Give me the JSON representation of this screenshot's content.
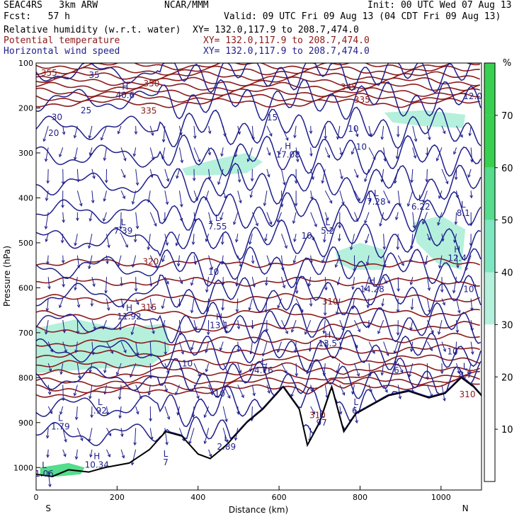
{
  "header": {
    "model": "SEAC4RS   3km ARW",
    "org": "NCAR/MMM",
    "init": "Init: 00 UTC Wed 07 Aug 13",
    "fcst": "Fcst:   57 h",
    "valid": "Valid: 09 UTC Fri 09 Aug 13 (04 CDT Fri 09 Aug 13)",
    "fields": [
      {
        "label": "Relative humidity (w.r.t. water)",
        "xy": "XY= 132.0,117.9 to 208.7,474.0",
        "color": "#000000"
      },
      {
        "label": "Potential temperature",
        "xy": "XY= 132.0,117.9 to 208.7,474.0",
        "color": "#8b1a1a"
      },
      {
        "label": "Horizontal wind speed",
        "xy": "XY= 132.0,117.9 to 208.7,474.0",
        "color": "#1f1f8a"
      }
    ]
  },
  "chart_data": {
    "type": "cross-section",
    "xlabel": "Distance (km)",
    "ylabel": "Pressure (hPa)",
    "xlim": [
      0,
      1100
    ],
    "ylim": [
      1050,
      100
    ],
    "xticks": [
      0,
      200,
      400,
      600,
      800,
      1000
    ],
    "yticks": [
      100,
      200,
      300,
      400,
      500,
      600,
      700,
      800,
      900,
      1000
    ],
    "x_end_labels": {
      "left": "S",
      "right": "N"
    },
    "colorbar": {
      "unit": "%",
      "ticks": [
        10,
        20,
        30,
        40,
        50,
        60,
        70
      ],
      "colors": [
        "#ffffff",
        "#ffffff",
        "#ffffff",
        "#b4f0dc",
        "#7ee6c0",
        "#55dc8c",
        "#38d050"
      ]
    },
    "theta_labels": [
      {
        "text": "355",
        "x": 12,
        "p": 128
      },
      {
        "text": "350",
        "x": 265,
        "p": 152
      },
      {
        "text": "345",
        "x": 752,
        "p": 160
      },
      {
        "text": "335",
        "x": 258,
        "p": 213
      },
      {
        "text": "335",
        "x": 785,
        "p": 188
      },
      {
        "text": "320",
        "x": 263,
        "p": 548
      },
      {
        "text": "315",
        "x": 258,
        "p": 650
      },
      {
        "text": "310",
        "x": 706,
        "p": 637
      },
      {
        "text": "310",
        "x": 675,
        "p": 890
      },
      {
        "text": "310",
        "x": 1045,
        "p": 844
      }
    ],
    "speed_labels": [
      {
        "text": "35",
        "x": 130,
        "p": 133
      },
      {
        "text": "30",
        "x": 38,
        "p": 227
      },
      {
        "text": "25",
        "x": 110,
        "p": 212
      },
      {
        "text": "20",
        "x": 30,
        "p": 262
      },
      {
        "text": "15",
        "x": 570,
        "p": 228
      },
      {
        "text": "10",
        "x": 790,
        "p": 293
      },
      {
        "text": "10",
        "x": 770,
        "p": 253
      },
      {
        "text": "10",
        "x": 655,
        "p": 491
      },
      {
        "text": "10",
        "x": 425,
        "p": 571
      },
      {
        "text": "10",
        "x": 1055,
        "p": 610
      },
      {
        "text": "10",
        "x": 1015,
        "p": 748
      },
      {
        "text": "10",
        "x": 360,
        "p": 775
      },
      {
        "text": "10",
        "x": 440,
        "p": 842
      },
      {
        "text": "12.0",
        "x": 1055,
        "p": 180
      }
    ],
    "extrema": [
      {
        "kind": "H",
        "value": "40.6",
        "x": 220,
        "p": 178
      },
      {
        "kind": "H",
        "value": "17.08",
        "x": 622,
        "p": 310
      },
      {
        "kind": "L",
        "value": "7.28",
        "x": 840,
        "p": 415
      },
      {
        "kind": "L",
        "value": "6.22",
        "x": 950,
        "p": 426
      },
      {
        "kind": "L",
        "value": "8.1",
        "x": 1055,
        "p": 440
      },
      {
        "kind": "L",
        "value": "7.39",
        "x": 215,
        "p": 480
      },
      {
        "kind": "L",
        "value": "7.55",
        "x": 448,
        "p": 470
      },
      {
        "kind": "L",
        "value": "5.2",
        "x": 720,
        "p": 480
      },
      {
        "kind": "H",
        "value": "12.4",
        "x": 1040,
        "p": 540
      },
      {
        "kind": "H",
        "value": "14.28",
        "x": 830,
        "p": 610
      },
      {
        "kind": "H",
        "value": "11.92",
        "x": 230,
        "p": 670
      },
      {
        "kind": "H",
        "value": "13.1",
        "x": 452,
        "p": 690
      },
      {
        "kind": "H",
        "value": "13.5",
        "x": 720,
        "p": 730
      },
      {
        "kind": "L",
        "value": "4.76",
        "x": 562,
        "p": 790
      },
      {
        "kind": "L",
        "value": "6",
        "x": 890,
        "p": 790
      },
      {
        "kind": "L",
        "value": "8.7",
        "x": 1060,
        "p": 800
      },
      {
        "kind": "L",
        "value": ".92",
        "x": 158,
        "p": 880
      },
      {
        "kind": "L",
        "value": "1.79",
        "x": 60,
        "p": 915
      },
      {
        "kind": "L",
        "value": "97",
        "x": 705,
        "p": 907
      },
      {
        "kind": "L",
        "value": "6.",
        "x": 790,
        "p": 880
      },
      {
        "kind": "L",
        "value": "2.89",
        "x": 470,
        "p": 960
      },
      {
        "kind": "L",
        "value": "7",
        "x": 320,
        "p": 995
      },
      {
        "kind": "H",
        "value": "10.34",
        "x": 150,
        "p": 1000
      },
      {
        "kind": "L",
        "value": "1.06",
        "x": 20,
        "p": 1020
      }
    ],
    "rh_regions": [
      {
        "level": 40,
        "pts": [
          [
            360,
            335
          ],
          [
            440,
            315
          ],
          [
            520,
            300
          ],
          [
            560,
            320
          ],
          [
            520,
            345
          ],
          [
            430,
            350
          ],
          [
            370,
            350
          ]
        ]
      },
      {
        "level": 40,
        "pts": [
          [
            860,
            210
          ],
          [
            960,
            205
          ],
          [
            1060,
            215
          ],
          [
            1055,
            245
          ],
          [
            950,
            240
          ],
          [
            880,
            232
          ]
        ]
      },
      {
        "level": 40,
        "pts": [
          [
            930,
            455
          ],
          [
            1000,
            440
          ],
          [
            1060,
            470
          ],
          [
            1050,
            560
          ],
          [
            990,
            545
          ],
          [
            940,
            500
          ]
        ]
      },
      {
        "level": 40,
        "pts": [
          [
            740,
            520
          ],
          [
            800,
            500
          ],
          [
            860,
            515
          ],
          [
            860,
            560
          ],
          [
            780,
            560
          ],
          [
            745,
            545
          ]
        ]
      },
      {
        "level": 40,
        "pts": [
          [
            0,
            690
          ],
          [
            100,
            670
          ],
          [
            200,
            690
          ],
          [
            320,
            680
          ],
          [
            330,
            740
          ],
          [
            280,
            775
          ],
          [
            150,
            780
          ],
          [
            0,
            790
          ]
        ]
      },
      {
        "level": 60,
        "pts": [
          [
            10,
            1000
          ],
          [
            80,
            990
          ],
          [
            120,
            1000
          ],
          [
            110,
            1015
          ],
          [
            50,
            1020
          ],
          [
            10,
            1015
          ]
        ]
      }
    ],
    "terrain": [
      [
        0,
        1015
      ],
      [
        40,
        1020
      ],
      [
        80,
        1005
      ],
      [
        130,
        1010
      ],
      [
        170,
        1000
      ],
      [
        230,
        990
      ],
      [
        280,
        960
      ],
      [
        320,
        920
      ],
      [
        360,
        930
      ],
      [
        400,
        970
      ],
      [
        430,
        980
      ],
      [
        470,
        950
      ],
      [
        520,
        900
      ],
      [
        560,
        870
      ],
      [
        610,
        820
      ],
      [
        650,
        870
      ],
      [
        670,
        950
      ],
      [
        700,
        900
      ],
      [
        730,
        820
      ],
      [
        760,
        920
      ],
      [
        790,
        880
      ],
      [
        830,
        860
      ],
      [
        870,
        840
      ],
      [
        920,
        830
      ],
      [
        970,
        845
      ],
      [
        1010,
        835
      ],
      [
        1050,
        800
      ],
      [
        1080,
        820
      ],
      [
        1100,
        840
      ]
    ],
    "theta_contours": 20,
    "speed_contours": 14,
    "grid": false,
    "wind_vectors": true
  }
}
